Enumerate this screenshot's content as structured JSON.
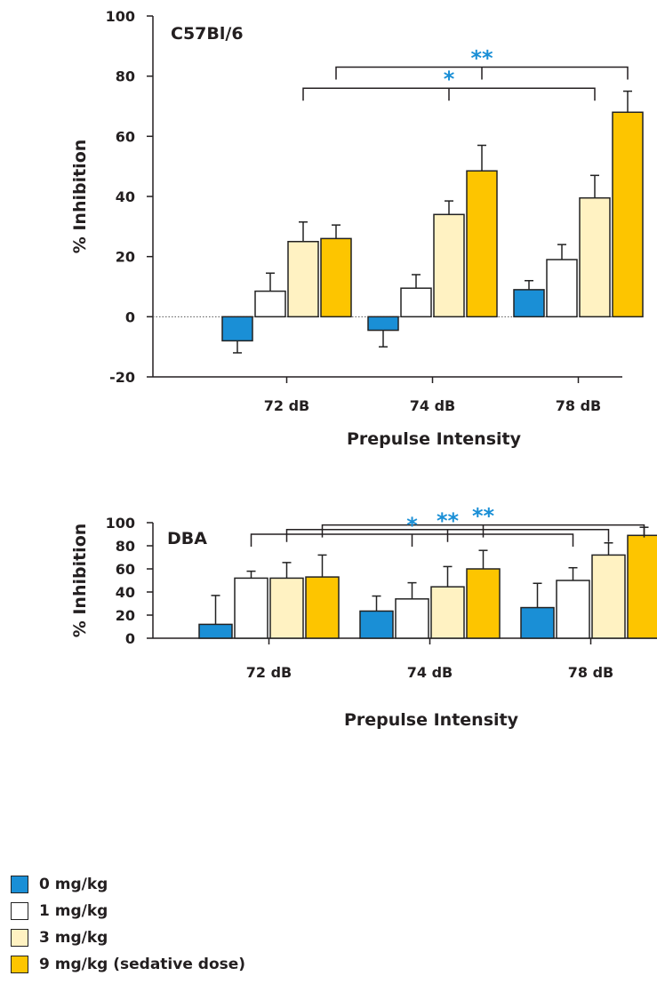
{
  "colors": {
    "axis": "#231f20",
    "star": "#1a8fd6",
    "bar_edge": "#222222"
  },
  "legend": [
    {
      "label": "0 mg/kg",
      "color": "#1a8fd6"
    },
    {
      "label": "1 mg/kg",
      "color": "#ffffff"
    },
    {
      "label": "3 mg/kg",
      "color": "#fff2c2"
    },
    {
      "label": "9 mg/kg (sedative dose)",
      "color": "#fdc500"
    }
  ],
  "chart_data": [
    {
      "type": "bar",
      "title": "C57Bl/6",
      "xlabel": "Prepulse Intensity",
      "ylabel": "% Inhibition",
      "ylim": [
        -20,
        100
      ],
      "yticks": [
        -20,
        0,
        20,
        40,
        60,
        80,
        100
      ],
      "tick_labels": [
        "-20",
        "0",
        "20",
        "40",
        "60",
        "80",
        "100"
      ],
      "zero_line": "dotted",
      "categories": [
        "72 dB",
        "74 dB",
        "78 dB"
      ],
      "series": [
        {
          "name": "0 mg/kg",
          "values": [
            -8,
            -4.5,
            9
          ],
          "errors": [
            4,
            5.5,
            3
          ]
        },
        {
          "name": "1 mg/kg",
          "values": [
            8.5,
            9.5,
            19
          ],
          "errors": [
            6,
            4.5,
            5
          ]
        },
        {
          "name": "3 mg/kg",
          "values": [
            25,
            34,
            39.5
          ],
          "errors": [
            6.5,
            4.5,
            7.5
          ]
        },
        {
          "name": "9 mg/kg (sedative dose)",
          "values": [
            26,
            48.5,
            68
          ],
          "errors": [
            4.5,
            8.5,
            7
          ]
        }
      ],
      "brackets": [
        {
          "from": [
            0,
            3
          ],
          "to": [
            2,
            3
          ],
          "label": "**",
          "level": 83
        },
        {
          "from": [
            0,
            2
          ],
          "to": [
            2,
            2
          ],
          "label": "*",
          "level": 76
        }
      ]
    },
    {
      "type": "bar",
      "title": "DBA",
      "xlabel": "Prepulse Intensity",
      "ylabel": "% Inhibition",
      "ylim": [
        0,
        100
      ],
      "yticks": [
        0,
        20,
        40,
        60,
        80,
        100
      ],
      "tick_labels": [
        "0",
        "20",
        "40",
        "60",
        "80",
        "100"
      ],
      "zero_line": "solid",
      "categories": [
        "72 dB",
        "74 dB",
        "78 dB"
      ],
      "series": [
        {
          "name": "0 mg/kg",
          "values": [
            12,
            23.5,
            26.5
          ],
          "errors": [
            25,
            13,
            21
          ]
        },
        {
          "name": "1 mg/kg",
          "values": [
            52,
            34,
            50
          ],
          "errors": [
            6,
            14,
            11
          ]
        },
        {
          "name": "3 mg/kg",
          "values": [
            52,
            44.5,
            72
          ],
          "errors": [
            13.5,
            17.5,
            10.5
          ]
        },
        {
          "name": "9 mg/kg (sedative dose)",
          "values": [
            53,
            60,
            89
          ],
          "errors": [
            19,
            16,
            7
          ]
        }
      ],
      "brackets": [
        {
          "from": [
            0,
            3
          ],
          "to": [
            2,
            3
          ],
          "label": "**",
          "level": 98
        },
        {
          "from": [
            0,
            2
          ],
          "to": [
            2,
            2
          ],
          "label": "**",
          "level": 94
        },
        {
          "from": [
            0,
            1
          ],
          "to": [
            2,
            1
          ],
          "label": "*",
          "level": 90
        }
      ]
    }
  ]
}
